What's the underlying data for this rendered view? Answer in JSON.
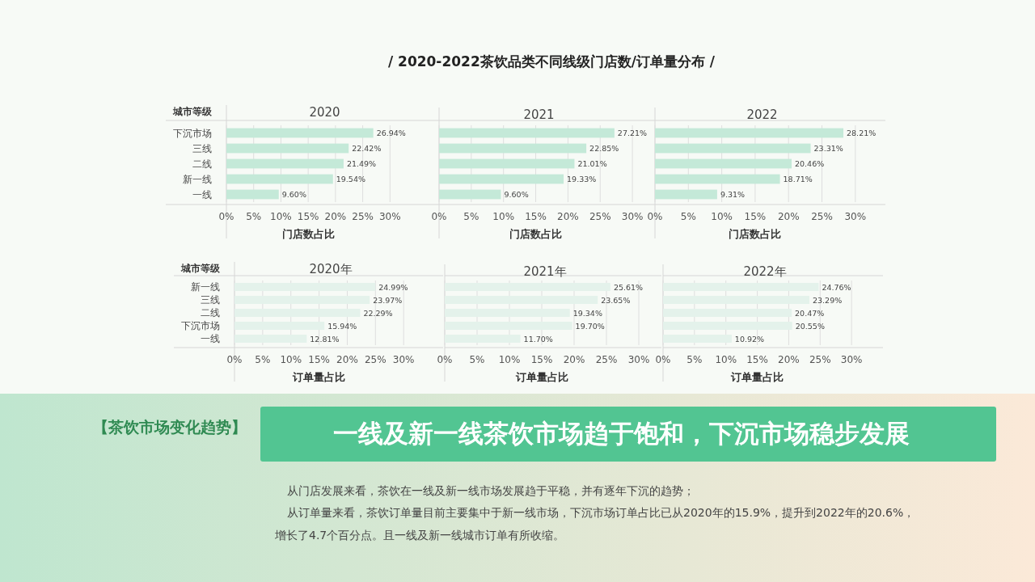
{
  "chart_data": [
    {
      "type": "other",
      "title": "/ 2020-2022茶饮品类不同线级门店数/订单量分布 /",
      "annotations": [
        "【茶饮市场变化趋势】",
        "一线及新一线茶饮市场趋于饱和，下沉市场稳步发展",
        "从门店发展来看，茶饮在一线及新一线市场发展趋于平稳，并有逐年下沉的趋势；",
        "从订单量来看，茶饮订单量目前主要集中于新一线市场，下沉市场订单占比已从2020年的15.9%，提升到2022年的20.6%，",
        "增长了4.7个百分点。且一线及新一线城市订单有所收缩。"
      ]
    },
    {
      "type": "bar",
      "orientation": "horizontal",
      "title": "2020",
      "xlabel": "门店数占比",
      "ylabel": "城市等级",
      "categories": [
        "下沉市场",
        "三线",
        "二线",
        "新一线",
        "一线"
      ],
      "values": [
        26.94,
        22.42,
        21.49,
        19.54,
        9.6
      ],
      "value_labels": [
        "26.94%",
        "22.42%",
        "21.49%",
        "19.54%",
        "9.60%"
      ],
      "color": "#c4e9d8",
      "xlim": [
        0,
        39
      ],
      "xticks": [
        {
          "value": 0,
          "label": "0%"
        },
        {
          "value": 5,
          "label": "5%"
        },
        {
          "value": 10,
          "label": "10%"
        },
        {
          "value": 15,
          "label": "15%"
        },
        {
          "value": 20,
          "label": "20%"
        },
        {
          "value": 25,
          "label": "25%"
        },
        {
          "value": 30,
          "label": "30%"
        }
      ],
      "grid": "x"
    },
    {
      "type": "bar",
      "orientation": "horizontal",
      "title": "2021",
      "xlabel": "门店数占比",
      "categories": [
        null,
        null,
        null,
        null,
        null
      ],
      "values": [
        27.21,
        22.85,
        21.01,
        19.33,
        9.6
      ],
      "value_labels": [
        "27.21%",
        "22.85%",
        "21.01%",
        "19.33%",
        "9.60%"
      ],
      "color": "#c4e9d8",
      "xlim": [
        0,
        33.5
      ],
      "xticks": [
        {
          "value": 0,
          "label": "0%"
        },
        {
          "value": 5,
          "label": "5%"
        },
        {
          "value": 10,
          "label": "10%"
        },
        {
          "value": 15,
          "label": "15%"
        },
        {
          "value": 20,
          "label": "20%"
        },
        {
          "value": 25,
          "label": "25%"
        },
        {
          "value": 30,
          "label": "30%"
        }
      ],
      "grid": "x",
      "tick_labels": "x"
    },
    {
      "type": "bar",
      "orientation": "horizontal",
      "title": "2022",
      "xlabel": "门店数占比",
      "categories": [
        null,
        null,
        null,
        null,
        null
      ],
      "values": [
        28.21,
        23.31,
        20.46,
        18.71,
        9.31
      ],
      "value_labels": [
        "28.21%",
        "23.31%",
        "20.46%",
        "18.71%",
        "9.31%"
      ],
      "color": "#c4e9d8",
      "xlim": [
        0,
        34.5
      ],
      "xticks": [
        {
          "value": 0,
          "label": "0%"
        },
        {
          "value": 5,
          "label": "5%"
        },
        {
          "value": 10,
          "label": "10%"
        },
        {
          "value": 15,
          "label": "15%"
        },
        {
          "value": 20,
          "label": "20%"
        },
        {
          "value": 25,
          "label": "25%"
        },
        {
          "value": 30,
          "label": "30%"
        }
      ],
      "grid": "x",
      "tick_labels": "x"
    },
    {
      "type": "bar",
      "orientation": "horizontal",
      "title": "2020年",
      "xlabel": "订单量占比",
      "ylabel": "城市等级",
      "categories": [
        "新一线",
        "三线",
        "二线",
        "下沉市场",
        "一线"
      ],
      "values": [
        24.99,
        23.97,
        22.29,
        15.94,
        12.81
      ],
      "value_labels": [
        "24.99%",
        "23.97%",
        "22.29%",
        "15.94%",
        "12.81%"
      ],
      "color": "#e4f2eb",
      "xlim": [
        0,
        37
      ],
      "xticks": [
        {
          "value": 0,
          "label": "0%"
        },
        {
          "value": 5,
          "label": "5%"
        },
        {
          "value": 10,
          "label": "10%"
        },
        {
          "value": 15,
          "label": "15%"
        },
        {
          "value": 20,
          "label": "20%"
        },
        {
          "value": 25,
          "label": "25%"
        },
        {
          "value": 30,
          "label": "30%"
        }
      ],
      "grid": "x"
    },
    {
      "type": "bar",
      "orientation": "horizontal",
      "title": "2021年",
      "xlabel": "订单量占比",
      "categories": [
        null,
        null,
        null,
        null,
        null
      ],
      "values": [
        25.61,
        23.65,
        19.34,
        19.7,
        11.7
      ],
      "value_labels": [
        "25.61%",
        "23.65%",
        "19.34%",
        "19.70%",
        "11.70%"
      ],
      "color": "#e4f2eb",
      "xlim": [
        0,
        33.5
      ],
      "xticks": [
        {
          "value": 0,
          "label": "0%"
        },
        {
          "value": 5,
          "label": "5%"
        },
        {
          "value": 10,
          "label": "10%"
        },
        {
          "value": 15,
          "label": "15%"
        },
        {
          "value": 20,
          "label": "20%"
        },
        {
          "value": 25,
          "label": "25%"
        },
        {
          "value": 30,
          "label": "30%"
        }
      ],
      "grid": "x",
      "tick_labels": "x"
    },
    {
      "type": "bar",
      "orientation": "horizontal",
      "title": "2022年",
      "xlabel": "订单量占比",
      "categories": [
        null,
        null,
        null,
        null,
        null
      ],
      "values": [
        24.76,
        23.29,
        20.47,
        20.55,
        10.92
      ],
      "value_labels": [
        "24.76%",
        "23.29%",
        "20.47%",
        "20.55%",
        "10.92%"
      ],
      "color": "#e4f2eb",
      "xlim": [
        0,
        35
      ],
      "xticks": [
        {
          "value": 0,
          "label": "0%"
        },
        {
          "value": 5,
          "label": "5%"
        },
        {
          "value": 10,
          "label": "10%"
        },
        {
          "value": 15,
          "label": "15%"
        },
        {
          "value": 20,
          "label": "20%"
        },
        {
          "value": 25,
          "label": "25%"
        },
        {
          "value": 30,
          "label": "30%"
        }
      ],
      "grid": "x",
      "tick_labels": "x"
    }
  ]
}
